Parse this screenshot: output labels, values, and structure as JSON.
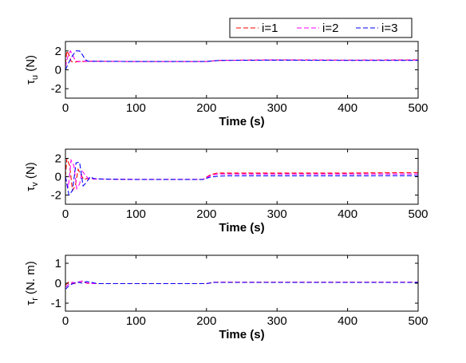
{
  "legend": {
    "entries": [
      {
        "label": "i=1",
        "color": "#ff0000"
      },
      {
        "label": "i=2",
        "color": "#ff00ff"
      },
      {
        "label": "i=3",
        "color": "#0000ff"
      }
    ]
  },
  "chart_data": [
    {
      "type": "line",
      "xlabel": "Time (s)",
      "ylabel_main": "τ",
      "ylabel_sub": "u",
      "ylabel_unit": "(N)",
      "xlim": [
        0,
        500
      ],
      "ylim": [
        -3,
        3
      ],
      "xticks": [
        0,
        100,
        200,
        300,
        400,
        500
      ],
      "yticks": [
        -2,
        0,
        2
      ],
      "grid": false,
      "series": [
        {
          "name": "i=1",
          "color": "#ff0000",
          "x": [
            0,
            2,
            5,
            8,
            12,
            16,
            20,
            25,
            30,
            50,
            100,
            150,
            200,
            210,
            220,
            300,
            400,
            500
          ],
          "y": [
            0.6,
            2.0,
            1.6,
            0.9,
            0.8,
            0.85,
            0.9,
            0.88,
            0.9,
            0.9,
            0.88,
            0.88,
            0.88,
            0.95,
            1.0,
            1.05,
            1.02,
            1.05
          ]
        },
        {
          "name": "i=2",
          "color": "#ff00ff",
          "x": [
            0,
            3,
            7,
            10,
            14,
            18,
            22,
            28,
            35,
            50,
            100,
            150,
            200,
            210,
            220,
            300,
            400,
            500
          ],
          "y": [
            0.3,
            1.3,
            2.0,
            1.6,
            1.0,
            0.85,
            0.9,
            0.92,
            0.9,
            0.9,
            0.88,
            0.88,
            0.88,
            0.95,
            1.0,
            1.05,
            1.02,
            1.03
          ]
        },
        {
          "name": "i=3",
          "color": "#0000ff",
          "x": [
            0,
            5,
            10,
            15,
            20,
            24,
            28,
            32,
            40,
            50,
            100,
            150,
            200,
            210,
            220,
            300,
            400,
            500
          ],
          "y": [
            0.0,
            0.8,
            1.5,
            2.0,
            2.0,
            1.6,
            1.1,
            0.9,
            0.9,
            0.9,
            0.88,
            0.88,
            0.88,
            0.95,
            1.0,
            1.02,
            1.0,
            1.0
          ]
        }
      ]
    },
    {
      "type": "line",
      "xlabel": "Time (s)",
      "ylabel_main": "τ",
      "ylabel_sub": "v",
      "ylabel_unit": "(N)",
      "xlim": [
        0,
        500
      ],
      "ylim": [
        -3,
        3
      ],
      "xticks": [
        0,
        100,
        200,
        300,
        400,
        500
      ],
      "yticks": [
        -2,
        0,
        2
      ],
      "grid": false,
      "series": [
        {
          "name": "i=1",
          "color": "#ff0000",
          "x": [
            0,
            2,
            6,
            10,
            14,
            18,
            22,
            26,
            30,
            40,
            100,
            150,
            195,
            205,
            215,
            230,
            300,
            400,
            500
          ],
          "y": [
            0,
            2.0,
            1.2,
            -1.5,
            -1.0,
            0.8,
            0.2,
            -0.3,
            -0.2,
            -0.25,
            -0.3,
            -0.3,
            -0.3,
            0.2,
            0.4,
            0.4,
            0.4,
            0.4,
            0.45
          ]
        },
        {
          "name": "i=2",
          "color": "#ff00ff",
          "x": [
            0,
            4,
            8,
            12,
            16,
            20,
            24,
            28,
            33,
            40,
            100,
            150,
            195,
            205,
            215,
            230,
            300,
            400,
            500
          ],
          "y": [
            0,
            -1.2,
            1.8,
            1.2,
            -1.3,
            -0.8,
            0.6,
            0.2,
            -0.25,
            -0.25,
            -0.3,
            -0.3,
            -0.3,
            0.1,
            0.3,
            0.3,
            0.3,
            0.3,
            0.3
          ]
        },
        {
          "name": "i=3",
          "color": "#0000ff",
          "x": [
            0,
            5,
            10,
            15,
            20,
            25,
            30,
            35,
            40,
            50,
            100,
            150,
            195,
            205,
            215,
            230,
            300,
            400,
            500
          ],
          "y": [
            0,
            -2.0,
            -1.5,
            1.5,
            1.6,
            -1.0,
            -0.6,
            0.0,
            -0.2,
            -0.25,
            -0.3,
            -0.3,
            -0.3,
            -0.05,
            0.05,
            0.1,
            0.1,
            0.1,
            0.12
          ]
        }
      ]
    },
    {
      "type": "line",
      "xlabel": "Time (s)",
      "ylabel_main": "τ",
      "ylabel_sub": "r",
      "ylabel_unit": "(N. m)",
      "xlim": [
        0,
        500
      ],
      "ylim": [
        -1.4,
        1.4
      ],
      "xticks": [
        0,
        100,
        200,
        300,
        400,
        500
      ],
      "yticks": [
        -1,
        0,
        1
      ],
      "grid": false,
      "series": [
        {
          "name": "i=1",
          "color": "#ff0000",
          "x": [
            0,
            4,
            8,
            12,
            18,
            24,
            30,
            40,
            100,
            200,
            210,
            300,
            400,
            500
          ],
          "y": [
            -0.1,
            0.05,
            0.0,
            -0.02,
            0.05,
            0.1,
            0.0,
            -0.02,
            -0.02,
            -0.02,
            0.05,
            0.05,
            0.05,
            0.05
          ]
        },
        {
          "name": "i=2",
          "color": "#ff00ff",
          "x": [
            0,
            5,
            10,
            15,
            20,
            25,
            30,
            40,
            100,
            200,
            210,
            300,
            400,
            500
          ],
          "y": [
            -0.2,
            -0.05,
            0.05,
            0.0,
            0.08,
            0.12,
            0.02,
            -0.02,
            -0.02,
            -0.02,
            0.05,
            0.05,
            0.05,
            0.05
          ]
        },
        {
          "name": "i=3",
          "color": "#0000ff",
          "x": [
            0,
            6,
            12,
            18,
            24,
            30,
            36,
            45,
            100,
            200,
            210,
            300,
            400,
            500
          ],
          "y": [
            -0.3,
            -0.1,
            0.0,
            0.05,
            0.0,
            0.08,
            0.05,
            -0.02,
            -0.02,
            -0.02,
            0.04,
            0.04,
            0.04,
            0.04
          ]
        }
      ]
    }
  ]
}
